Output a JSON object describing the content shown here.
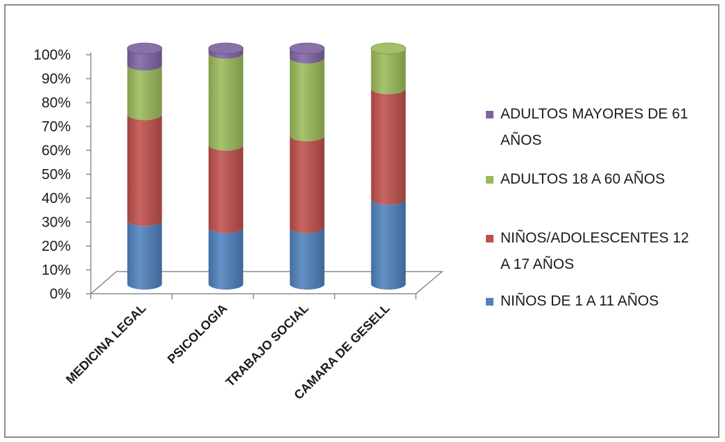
{
  "chart_data": {
    "type": "bar",
    "stacked": true,
    "percent": true,
    "categories": [
      "MEDICINA LEGAL",
      "PSICOLOGIA",
      "TRABAJO SOCIAL",
      "CAMARA DE GESELL"
    ],
    "series": [
      {
        "name": "NIÑOS DE 1 A 11 AÑOS",
        "color": "#4f81bd",
        "values": [
          27,
          24,
          24,
          36
        ]
      },
      {
        "name": "NIÑOS/ADOLESCENTES 12 A 17 AÑOS",
        "color": "#c0504d",
        "values": [
          45,
          35,
          39,
          47
        ]
      },
      {
        "name": "ADULTOS 18 A 60 AÑOS",
        "color": "#9bbb59",
        "values": [
          21,
          39,
          33,
          17
        ]
      },
      {
        "name": "ADULTOS MAYORES DE 61 AÑOS",
        "color": "#8064a2",
        "values": [
          7,
          2,
          4,
          0
        ]
      }
    ],
    "y_ticks": [
      "0%",
      "10%",
      "20%",
      "30%",
      "40%",
      "50%",
      "60%",
      "70%",
      "80%",
      "90%",
      "100%"
    ],
    "ylim": [
      0,
      100
    ],
    "legend": {
      "position": "right",
      "order": [
        3,
        2,
        1,
        0
      ],
      "lines": [
        [
          "ADULTOS MAYORES DE 61",
          "AÑOS"
        ],
        [
          "ADULTOS 18 A 60 AÑOS"
        ],
        [
          "NIÑOS/ADOLESCENTES 12",
          "A 17 AÑOS"
        ],
        [
          "NIÑOS DE 1 A 11 AÑOS"
        ]
      ]
    },
    "grid": false
  }
}
